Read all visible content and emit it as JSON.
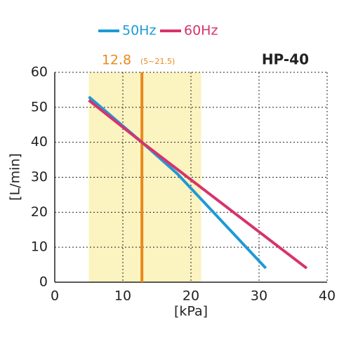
{
  "chart_data": {
    "type": "line",
    "title": "HP-40",
    "x_label": "[kPa]",
    "y_label": "[L/min]",
    "xlim": [
      0,
      40
    ],
    "ylim": [
      0,
      60
    ],
    "xticks": [
      0,
      10,
      20,
      30,
      40
    ],
    "yticks": [
      0,
      10,
      20,
      30,
      40,
      50,
      60
    ],
    "grid": true,
    "band": [
      5,
      21.5
    ],
    "band_color": "#fbf3c0",
    "band_label": "(5~21.5)",
    "marker": 12.8,
    "marker_color": "#e8891c",
    "series": [
      {
        "name": "50Hz",
        "color": "#1e9ad6",
        "x": [
          5,
          12.8,
          18,
          31
        ],
        "values": [
          53,
          40,
          31,
          4
        ]
      },
      {
        "name": "60Hz",
        "color": "#d6336c",
        "x": [
          5,
          12.8,
          37
        ],
        "values": [
          52,
          40,
          4
        ]
      }
    ]
  }
}
